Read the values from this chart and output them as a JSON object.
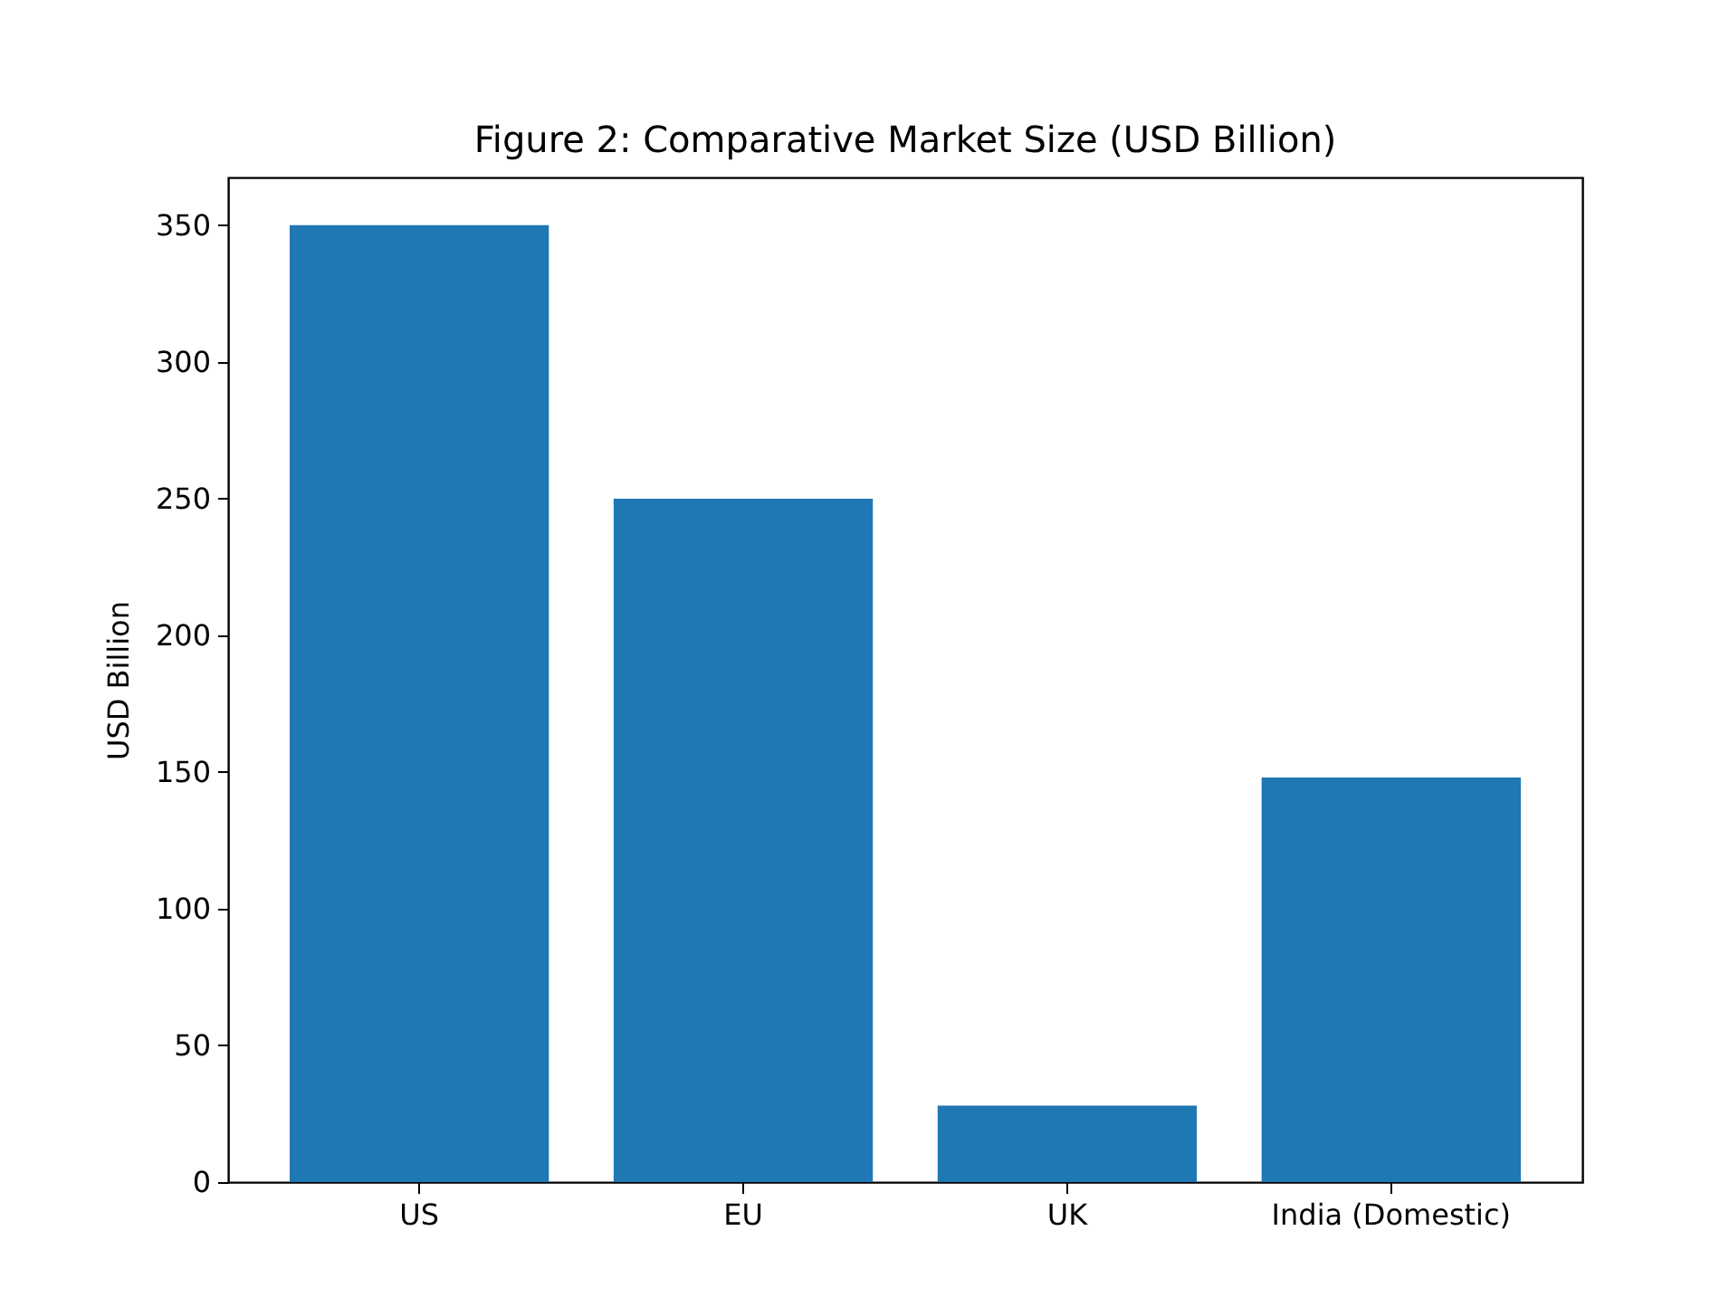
{
  "chart_data": {
    "type": "bar",
    "title": "Figure 2: Comparative Market Size (USD Billion)",
    "ylabel": "USD Billion",
    "categories": [
      "US",
      "EU",
      "UK",
      "India (Domestic)"
    ],
    "values": [
      350,
      250,
      28,
      148
    ],
    "color": "#1f77b4",
    "ylim": [
      0,
      367.5
    ],
    "yticks": [
      0,
      50,
      100,
      150,
      200,
      250,
      300,
      350
    ],
    "grid": false
  }
}
